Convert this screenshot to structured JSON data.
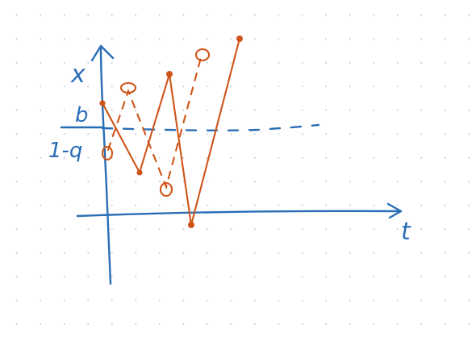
{
  "axes": {
    "x_axis_label": "t",
    "y_axis_label": "x"
  },
  "threshold": {
    "numerator": "b",
    "denominator": "1-q"
  },
  "colors": {
    "axis_blue": "#2a6db6",
    "trajectory_orange": "#cf5418",
    "grid_dot": "#c9ced6"
  }
}
